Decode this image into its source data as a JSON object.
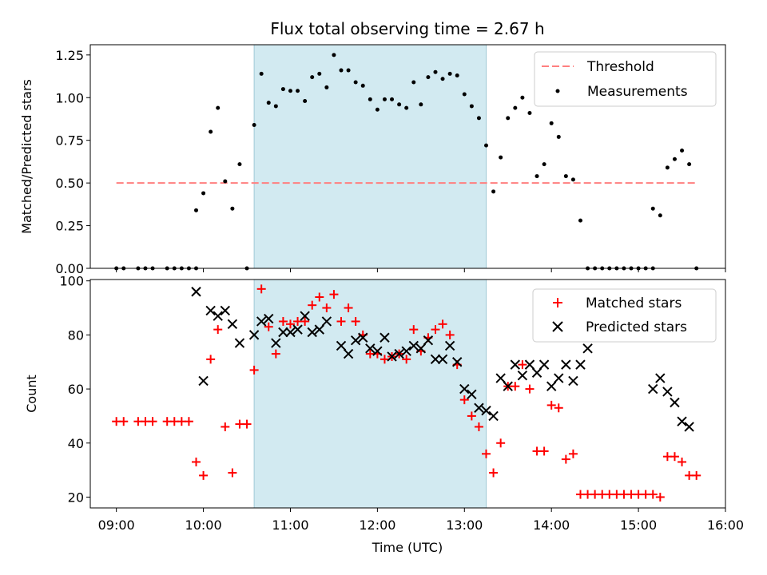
{
  "chart_data": [
    {
      "type": "scatter",
      "title": "Flux total observing time = 2.67 h",
      "xlabel": "",
      "ylabel": "Matched/Predicted stars",
      "ylim": [
        0,
        1.31
      ],
      "yticks": [
        "0.00",
        "0.25",
        "0.50",
        "0.75",
        "1.00",
        "1.25"
      ],
      "ytick_values": [
        0,
        0.25,
        0.5,
        0.75,
        1.0,
        1.25
      ],
      "shaded_region": [
        "10:35",
        "13:15"
      ],
      "threshold": {
        "name": "Threshold",
        "value": 0.5,
        "x_start": "09:00",
        "x_end": "15:40",
        "color": "#ff7f7f"
      },
      "legend": {
        "position": "top-right",
        "entries": [
          "Threshold",
          "Measurements"
        ]
      },
      "series": [
        {
          "name": "Measurements",
          "color": "#000000",
          "marker": "dot",
          "points": [
            [
              "09:00",
              0
            ],
            [
              "09:05",
              0
            ],
            [
              "09:15",
              0
            ],
            [
              "09:20",
              0
            ],
            [
              "09:25",
              0
            ],
            [
              "09:35",
              0
            ],
            [
              "09:40",
              0
            ],
            [
              "09:45",
              0
            ],
            [
              "09:50",
              0
            ],
            [
              "09:55",
              0
            ],
            [
              "09:55",
              0.34
            ],
            [
              "10:00",
              0.44
            ],
            [
              "10:05",
              0.8
            ],
            [
              "10:10",
              0.94
            ],
            [
              "10:15",
              0.51
            ],
            [
              "10:20",
              0.35
            ],
            [
              "10:25",
              0.61
            ],
            [
              "10:30",
              0
            ],
            [
              "10:35",
              0.84
            ],
            [
              "10:40",
              1.14
            ],
            [
              "10:45",
              0.97
            ],
            [
              "10:50",
              0.95
            ],
            [
              "10:55",
              1.05
            ],
            [
              "11:00",
              1.04
            ],
            [
              "11:05",
              1.04
            ],
            [
              "11:10",
              0.98
            ],
            [
              "11:15",
              1.12
            ],
            [
              "11:20",
              1.14
            ],
            [
              "11:25",
              1.06
            ],
            [
              "11:30",
              1.25
            ],
            [
              "11:35",
              1.16
            ],
            [
              "11:40",
              1.16
            ],
            [
              "11:45",
              1.09
            ],
            [
              "11:50",
              1.07
            ],
            [
              "11:55",
              0.99
            ],
            [
              "12:00",
              0.93
            ],
            [
              "12:05",
              0.99
            ],
            [
              "12:10",
              0.99
            ],
            [
              "12:15",
              0.96
            ],
            [
              "12:20",
              0.94
            ],
            [
              "12:25",
              1.09
            ],
            [
              "12:30",
              0.96
            ],
            [
              "12:35",
              1.12
            ],
            [
              "12:40",
              1.15
            ],
            [
              "12:45",
              1.11
            ],
            [
              "12:50",
              1.14
            ],
            [
              "12:55",
              1.13
            ],
            [
              "13:00",
              1.02
            ],
            [
              "13:05",
              0.95
            ],
            [
              "13:10",
              0.88
            ],
            [
              "13:15",
              0.72
            ],
            [
              "13:20",
              0.45
            ],
            [
              "13:25",
              0.65
            ],
            [
              "13:30",
              0.88
            ],
            [
              "13:35",
              0.94
            ],
            [
              "13:40",
              1.0
            ],
            [
              "13:45",
              0.91
            ],
            [
              "13:50",
              0.54
            ],
            [
              "13:55",
              0.61
            ],
            [
              "14:00",
              0.85
            ],
            [
              "14:05",
              0.77
            ],
            [
              "14:10",
              0.54
            ],
            [
              "14:15",
              0.52
            ],
            [
              "14:20",
              0.28
            ],
            [
              "14:25",
              0
            ],
            [
              "14:30",
              0
            ],
            [
              "14:35",
              0
            ],
            [
              "14:40",
              0
            ],
            [
              "14:45",
              0
            ],
            [
              "14:50",
              0
            ],
            [
              "14:55",
              0
            ],
            [
              "15:00",
              0
            ],
            [
              "15:05",
              0
            ],
            [
              "15:10",
              0
            ],
            [
              "15:10",
              0.35
            ],
            [
              "15:15",
              0.31
            ],
            [
              "15:20",
              0.59
            ],
            [
              "15:25",
              0.64
            ],
            [
              "15:30",
              0.69
            ],
            [
              "15:35",
              0.61
            ],
            [
              "15:40",
              0
            ]
          ]
        }
      ]
    },
    {
      "type": "scatter",
      "title": "",
      "xlabel": "Time (UTC)",
      "ylabel": "Count",
      "ylim": [
        16,
        100.5
      ],
      "yticks": [
        "20",
        "40",
        "60",
        "80",
        "100"
      ],
      "ytick_values": [
        20,
        40,
        60,
        80,
        100
      ],
      "xticks": [
        "09:00",
        "10:00",
        "11:00",
        "12:00",
        "13:00",
        "14:00",
        "15:00",
        "16:00"
      ],
      "xlim": [
        "08:42",
        "16:00"
      ],
      "shaded_region": [
        "10:35",
        "13:15"
      ],
      "legend": {
        "position": "top-right",
        "entries": [
          "Matched stars",
          "Predicted stars"
        ]
      },
      "series": [
        {
          "name": "Matched stars",
          "color": "#ff0000",
          "marker": "plus",
          "points": [
            [
              "09:00",
              48
            ],
            [
              "09:05",
              48
            ],
            [
              "09:15",
              48
            ],
            [
              "09:20",
              48
            ],
            [
              "09:25",
              48
            ],
            [
              "09:35",
              48
            ],
            [
              "09:40",
              48
            ],
            [
              "09:45",
              48
            ],
            [
              "09:50",
              48
            ],
            [
              "09:55",
              33
            ],
            [
              "10:00",
              28
            ],
            [
              "10:05",
              71
            ],
            [
              "10:10",
              82
            ],
            [
              "10:15",
              46
            ],
            [
              "10:20",
              29
            ],
            [
              "10:25",
              47
            ],
            [
              "10:30",
              47
            ],
            [
              "10:35",
              67
            ],
            [
              "10:40",
              97
            ],
            [
              "10:45",
              83
            ],
            [
              "10:50",
              73
            ],
            [
              "10:55",
              85
            ],
            [
              "11:00",
              84
            ],
            [
              "11:05",
              85
            ],
            [
              "11:10",
              85
            ],
            [
              "11:15",
              91
            ],
            [
              "11:20",
              94
            ],
            [
              "11:25",
              90
            ],
            [
              "11:30",
              95
            ],
            [
              "11:35",
              85
            ],
            [
              "11:40",
              90
            ],
            [
              "11:45",
              85
            ],
            [
              "11:50",
              80
            ],
            [
              "11:55",
              73
            ],
            [
              "12:00",
              73
            ],
            [
              "12:05",
              71
            ],
            [
              "12:10",
              72
            ],
            [
              "12:15",
              73
            ],
            [
              "12:20",
              71
            ],
            [
              "12:25",
              82
            ],
            [
              "12:30",
              74
            ],
            [
              "12:35",
              79
            ],
            [
              "12:40",
              82
            ],
            [
              "12:45",
              84
            ],
            [
              "12:50",
              80
            ],
            [
              "12:55",
              69
            ],
            [
              "13:00",
              56
            ],
            [
              "13:05",
              50
            ],
            [
              "13:10",
              46
            ],
            [
              "13:15",
              36
            ],
            [
              "13:20",
              29
            ],
            [
              "13:25",
              40
            ],
            [
              "13:30",
              61
            ],
            [
              "13:35",
              61
            ],
            [
              "13:40",
              69
            ],
            [
              "13:45",
              60
            ],
            [
              "13:50",
              37
            ],
            [
              "13:55",
              37
            ],
            [
              "14:00",
              54
            ],
            [
              "14:05",
              53
            ],
            [
              "14:10",
              34
            ],
            [
              "14:15",
              36
            ],
            [
              "14:20",
              21
            ],
            [
              "14:25",
              21
            ],
            [
              "14:30",
              21
            ],
            [
              "14:35",
              21
            ],
            [
              "14:40",
              21
            ],
            [
              "14:45",
              21
            ],
            [
              "14:50",
              21
            ],
            [
              "14:55",
              21
            ],
            [
              "15:00",
              21
            ],
            [
              "15:05",
              21
            ],
            [
              "15:10",
              21
            ],
            [
              "15:15",
              20
            ],
            [
              "15:20",
              35
            ],
            [
              "15:25",
              35
            ],
            [
              "15:30",
              33
            ],
            [
              "15:35",
              28
            ],
            [
              "15:40",
              28
            ]
          ]
        },
        {
          "name": "Predicted stars",
          "color": "#000000",
          "marker": "x",
          "points": [
            [
              "09:55",
              96
            ],
            [
              "10:00",
              63
            ],
            [
              "10:05",
              89
            ],
            [
              "10:10",
              87
            ],
            [
              "10:15",
              89
            ],
            [
              "10:20",
              84
            ],
            [
              "10:25",
              77
            ],
            [
              "10:35",
              80
            ],
            [
              "10:40",
              85
            ],
            [
              "10:45",
              86
            ],
            [
              "10:50",
              77
            ],
            [
              "10:55",
              81
            ],
            [
              "11:00",
              81
            ],
            [
              "11:05",
              82
            ],
            [
              "11:10",
              87
            ],
            [
              "11:15",
              81
            ],
            [
              "11:20",
              82
            ],
            [
              "11:25",
              85
            ],
            [
              "11:35",
              76
            ],
            [
              "11:40",
              73
            ],
            [
              "11:45",
              78
            ],
            [
              "11:50",
              79
            ],
            [
              "11:55",
              75
            ],
            [
              "12:00",
              74
            ],
            [
              "12:05",
              79
            ],
            [
              "12:10",
              72
            ],
            [
              "12:15",
              73
            ],
            [
              "12:20",
              74
            ],
            [
              "12:25",
              76
            ],
            [
              "12:30",
              75
            ],
            [
              "12:35",
              78
            ],
            [
              "12:40",
              71
            ],
            [
              "12:45",
              71
            ],
            [
              "12:50",
              76
            ],
            [
              "12:55",
              70
            ],
            [
              "13:00",
              60
            ],
            [
              "13:05",
              58
            ],
            [
              "13:10",
              53
            ],
            [
              "13:15",
              52
            ],
            [
              "13:20",
              50
            ],
            [
              "13:25",
              64
            ],
            [
              "13:30",
              61
            ],
            [
              "13:35",
              69
            ],
            [
              "13:40",
              65
            ],
            [
              "13:45",
              69
            ],
            [
              "13:50",
              66
            ],
            [
              "13:55",
              69
            ],
            [
              "14:00",
              61
            ],
            [
              "14:05",
              64
            ],
            [
              "14:10",
              69
            ],
            [
              "14:15",
              63
            ],
            [
              "14:20",
              69
            ],
            [
              "14:25",
              75
            ],
            [
              "15:10",
              60
            ],
            [
              "15:15",
              64
            ],
            [
              "15:20",
              59
            ],
            [
              "15:25",
              55
            ],
            [
              "15:30",
              48
            ],
            [
              "15:35",
              46
            ]
          ]
        }
      ]
    }
  ]
}
